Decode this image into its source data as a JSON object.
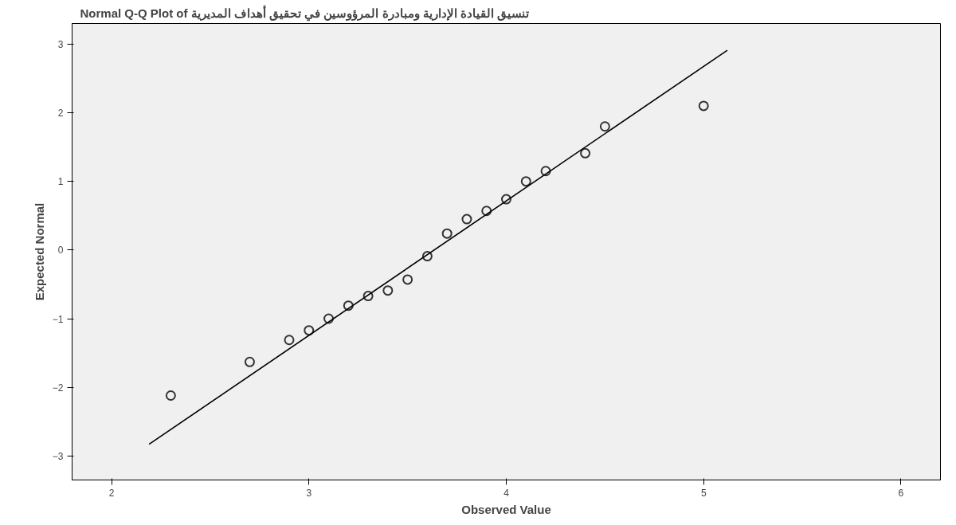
{
  "chart_data": {
    "type": "scatter",
    "title": "Normal Q-Q Plot of تنسيق القيادة الإدارية ومبادرة المرؤوسين في تحقيق أهداف المديرية",
    "xlabel": "Observed Value",
    "ylabel": "Expected Normal",
    "marker": "circle",
    "grid": false,
    "xlim": [
      1.8,
      6.2
    ],
    "xticks": [
      2,
      3,
      4,
      5,
      6
    ],
    "ylim": [
      -3.35,
      3.3
    ],
    "yticks": [
      -3,
      -2,
      -1,
      0,
      1,
      2,
      3
    ],
    "series": [
      {
        "color": "#333333",
        "x": [
          2.3,
          2.7,
          2.9,
          3.0,
          3.1,
          3.2,
          3.3,
          3.4,
          3.5,
          3.6,
          3.7,
          3.8,
          3.9,
          4.0,
          4.1,
          4.2,
          4.4,
          4.5,
          5.0
        ],
        "values": [
          -2.12,
          -1.63,
          -1.31,
          -1.17,
          -1.0,
          -0.81,
          -0.67,
          -0.59,
          -0.43,
          -0.09,
          0.24,
          0.45,
          0.57,
          0.74,
          1.0,
          1.15,
          1.41,
          1.8,
          2.1
        ]
      },
      {
        "type": "line",
        "marker": "none",
        "color": "#000000",
        "x": [
          2.19,
          5.12
        ],
        "values": [
          -2.83,
          2.91
        ]
      }
    ]
  }
}
